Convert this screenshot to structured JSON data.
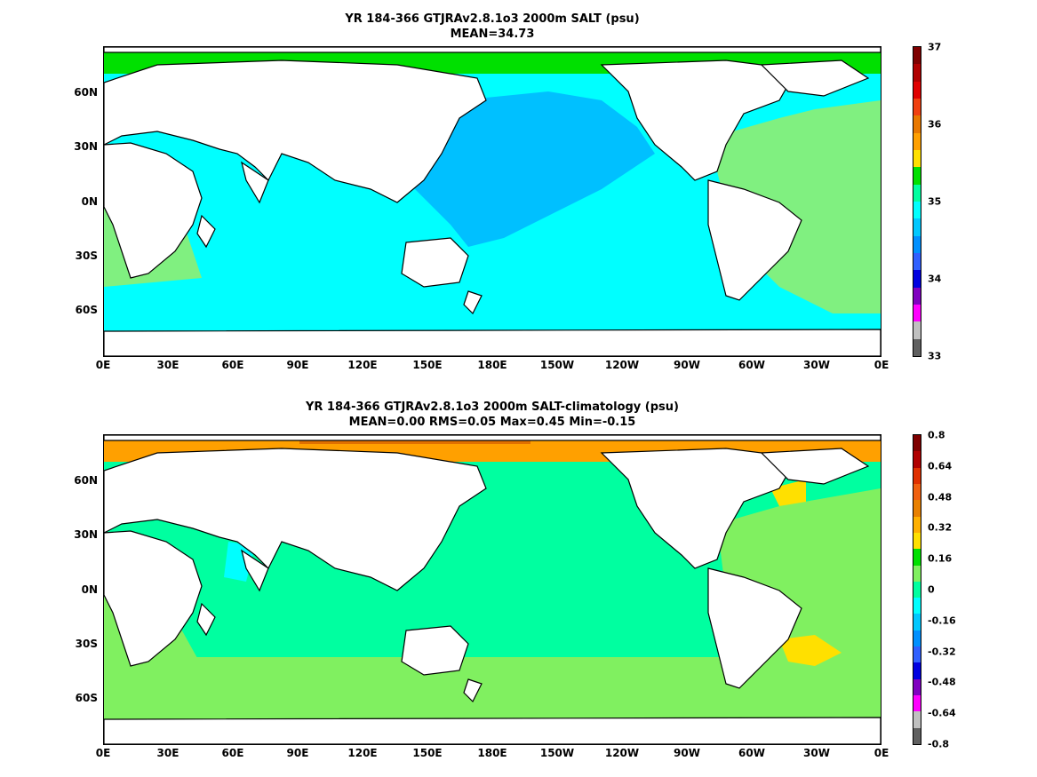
{
  "chart_data": [
    {
      "type": "heatmap",
      "title": "YR 184-366 GTJRAv2.8.1o3 2000m SALT (psu)",
      "subtitle": "MEAN=34.73",
      "xticks": [
        "0E",
        "30E",
        "60E",
        "90E",
        "120E",
        "150E",
        "180E",
        "150W",
        "120W",
        "90W",
        "60W",
        "30W",
        "0E"
      ],
      "yticks": [
        "60N",
        "30N",
        "0N",
        "30S",
        "60S"
      ],
      "xlim": [
        0,
        360
      ],
      "ylim": [
        -80,
        85
      ],
      "colorbar": {
        "ticks": [
          "37",
          "36",
          "35",
          "34",
          "33"
        ],
        "range": [
          33,
          37
        ],
        "colors": [
          "#7f0000",
          "#b00000",
          "#e00000",
          "#f04010",
          "#e87800",
          "#ffa000",
          "#ffe000",
          "#00e000",
          "#00ffa0",
          "#00ffff",
          "#00c8ff",
          "#0090ff",
          "#3060ff",
          "#0000e0",
          "#8000c0",
          "#ff00ff",
          "#c0c0c0",
          "#606060"
        ]
      }
    },
    {
      "type": "heatmap",
      "title": "YR 184-366 GTJRAv2.8.1o3 2000m SALT-climatology (psu)",
      "subtitle": "MEAN=0.00   RMS=0.05   Max=0.45   Min=-0.15",
      "xticks": [
        "0E",
        "30E",
        "60E",
        "90E",
        "120E",
        "150E",
        "180E",
        "150W",
        "120W",
        "90W",
        "60W",
        "30W",
        "0E"
      ],
      "yticks": [
        "60N",
        "30N",
        "0N",
        "30S",
        "60S"
      ],
      "xlim": [
        0,
        360
      ],
      "ylim": [
        -80,
        85
      ],
      "colorbar": {
        "ticks": [
          "0.8",
          "0.64",
          "0.48",
          "0.32",
          "0.16",
          "0",
          "-0.16",
          "-0.32",
          "-0.48",
          "-0.64",
          "-0.8"
        ],
        "range": [
          -0.8,
          0.8
        ],
        "colors": [
          "#7f0000",
          "#b00000",
          "#e03000",
          "#f06010",
          "#e88000",
          "#ffb000",
          "#ffe000",
          "#00e000",
          "#80f060",
          "#00ffa0",
          "#00ffff",
          "#00c8ff",
          "#0090ff",
          "#3060ff",
          "#0000e0",
          "#8000c0",
          "#ff00ff",
          "#c0c0c0",
          "#606060"
        ]
      }
    }
  ],
  "map": {
    "land_color": "#ffffff",
    "coast_color": "#000000",
    "top": {
      "pacific": "#00c0ff",
      "southern": "#00ffff",
      "atlantic": "#80f080",
      "arctic": "#00e000",
      "med": "#b00000"
    },
    "bottom": {
      "base": "#00ffa0",
      "southern": "#80f060",
      "arctic": "#ffa000",
      "arctic_dark": "#e07000",
      "anomaly_yellow": "#ffe000",
      "arabian": "#00ffff"
    }
  }
}
